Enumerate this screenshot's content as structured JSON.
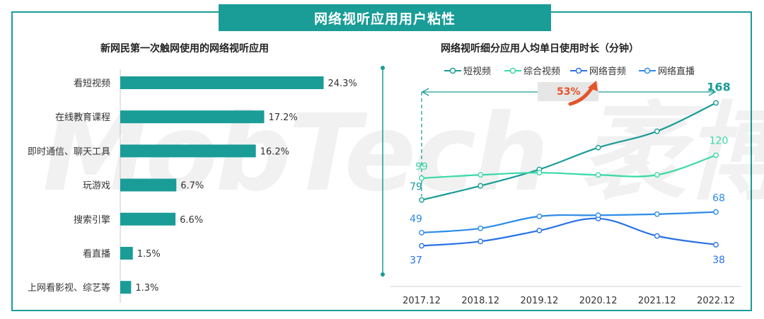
{
  "header": {
    "title": "网络视听应用用户粘性"
  },
  "watermark": {
    "text": "MobTech 袤博"
  },
  "chart_data": [
    {
      "type": "bar",
      "orientation": "horizontal",
      "title": "新网民第一次触网使用的网络视听应用",
      "categories": [
        "看短视频",
        "在线教育课程",
        "即时通信、聊天工具",
        "玩游戏",
        "搜索引擎",
        "看直播",
        "上网看影视、综艺等"
      ],
      "values": [
        24.3,
        17.2,
        16.2,
        6.7,
        6.6,
        1.5,
        1.3
      ],
      "value_labels": [
        "24.3%",
        "17.2%",
        "16.2%",
        "6.7%",
        "6.6%",
        "1.5%",
        "1.3%"
      ],
      "color": "#1a9c97",
      "xlim": [
        0,
        30
      ]
    },
    {
      "type": "line",
      "title": "网络视听细分应用人均单日使用时长（分钟）",
      "x": [
        "2017.12",
        "2018.12",
        "2019.12",
        "2020.12",
        "2021.12",
        "2022.12"
      ],
      "ylim": [
        20,
        175
      ],
      "legend_position": "top",
      "series": [
        {
          "name": "短视频",
          "color": "#1a9c97",
          "values": [
            79,
            92,
            107,
            127,
            142,
            168
          ]
        },
        {
          "name": "综合视频",
          "color": "#3ad9a8",
          "values": [
            99,
            102,
            104,
            102,
            102,
            120
          ]
        },
        {
          "name": "网络音频",
          "color": "#2a72e6",
          "values": [
            37,
            41,
            51,
            62,
            46,
            38
          ]
        },
        {
          "name": "网络直播",
          "color": "#2c8be8",
          "values": [
            49,
            53,
            64,
            65,
            66,
            68
          ]
        }
      ],
      "point_labels": [
        {
          "series": 1,
          "index": 0,
          "text": "99"
        },
        {
          "series": 0,
          "index": 0,
          "text": "79"
        },
        {
          "series": 3,
          "index": 0,
          "text": "49"
        },
        {
          "series": 2,
          "index": 0,
          "text": "37"
        },
        {
          "series": 0,
          "index": 5,
          "text": "168"
        },
        {
          "series": 1,
          "index": 5,
          "text": "120"
        },
        {
          "series": 3,
          "index": 5,
          "text": "68"
        },
        {
          "series": 2,
          "index": 5,
          "text": "38"
        }
      ],
      "growth_annotation": "53%"
    }
  ]
}
